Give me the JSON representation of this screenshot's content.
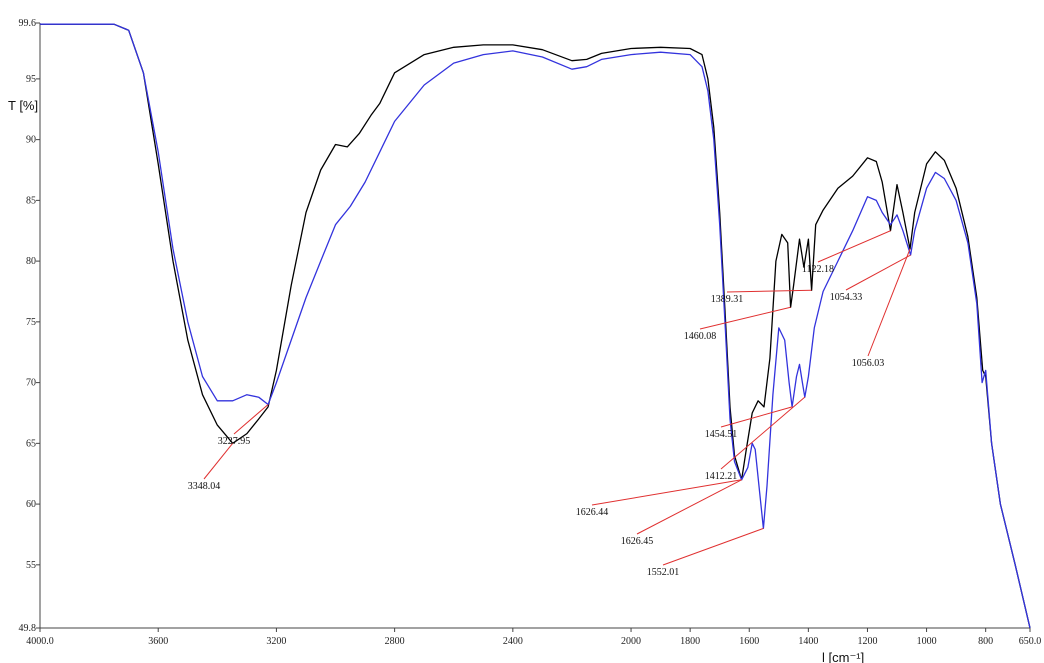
{
  "chart_data": {
    "type": "line",
    "ylabel": "T [%]",
    "xlabel": "l [cm⁻¹]",
    "xlim": [
      4000,
      650
    ],
    "ylim": [
      49.8,
      99.6
    ],
    "x_reversed": true,
    "grid": false,
    "x_ticks": [
      "4000.0",
      "3600",
      "3200",
      "2800",
      "2400",
      "2000",
      "1800",
      "1600",
      "1400",
      "1200",
      "1000",
      "800",
      "650.0"
    ],
    "y_ticks": [
      "99.6",
      "95",
      "90",
      "85",
      "80",
      "75",
      "70",
      "65",
      "60",
      "55",
      "49.8"
    ],
    "series": [
      {
        "color": "#000000",
        "points": [
          [
            4000,
            99.5
          ],
          [
            3750,
            99.5
          ],
          [
            3700,
            99.0
          ],
          [
            3650,
            95.5
          ],
          [
            3600,
            88.0
          ],
          [
            3550,
            80.0
          ],
          [
            3500,
            73.5
          ],
          [
            3450,
            69.0
          ],
          [
            3400,
            66.5
          ],
          [
            3348,
            65.0
          ],
          [
            3300,
            65.8
          ],
          [
            3260,
            67.0
          ],
          [
            3228,
            68.0
          ],
          [
            3200,
            71.0
          ],
          [
            3150,
            78.0
          ],
          [
            3100,
            84.0
          ],
          [
            3050,
            87.5
          ],
          [
            3000,
            89.6
          ],
          [
            2960,
            89.4
          ],
          [
            2920,
            90.5
          ],
          [
            2880,
            92.0
          ],
          [
            2850,
            93.0
          ],
          [
            2800,
            95.5
          ],
          [
            2700,
            97.0
          ],
          [
            2600,
            97.6
          ],
          [
            2500,
            97.8
          ],
          [
            2400,
            97.8
          ],
          [
            2300,
            97.4
          ],
          [
            2200,
            96.5
          ],
          [
            2150,
            96.6
          ],
          [
            2100,
            97.1
          ],
          [
            2000,
            97.5
          ],
          [
            1900,
            97.6
          ],
          [
            1800,
            97.5
          ],
          [
            1760,
            97.0
          ],
          [
            1740,
            95.0
          ],
          [
            1720,
            91.0
          ],
          [
            1700,
            84.0
          ],
          [
            1680,
            75.0
          ],
          [
            1665,
            68.0
          ],
          [
            1650,
            64.0
          ],
          [
            1626,
            62.0
          ],
          [
            1610,
            64.5
          ],
          [
            1590,
            67.5
          ],
          [
            1570,
            68.5
          ],
          [
            1550,
            68.0
          ],
          [
            1530,
            72.0
          ],
          [
            1510,
            80.0
          ],
          [
            1490,
            82.2
          ],
          [
            1470,
            81.5
          ],
          [
            1460,
            76.2
          ],
          [
            1450,
            78.0
          ],
          [
            1430,
            81.8
          ],
          [
            1415,
            79.5
          ],
          [
            1400,
            81.8
          ],
          [
            1389,
            77.6
          ],
          [
            1375,
            83.0
          ],
          [
            1350,
            84.2
          ],
          [
            1300,
            86.0
          ],
          [
            1250,
            87.0
          ],
          [
            1200,
            88.5
          ],
          [
            1170,
            88.2
          ],
          [
            1150,
            86.5
          ],
          [
            1122,
            82.5
          ],
          [
            1100,
            86.3
          ],
          [
            1080,
            84.0
          ],
          [
            1056,
            81.0
          ],
          [
            1040,
            84.0
          ],
          [
            1000,
            88.0
          ],
          [
            970,
            89.0
          ],
          [
            940,
            88.3
          ],
          [
            900,
            86.0
          ],
          [
            860,
            82.0
          ],
          [
            830,
            77.0
          ],
          [
            810,
            71.0
          ],
          [
            800,
            70.5
          ],
          [
            780,
            65.0
          ],
          [
            750,
            60.0
          ],
          [
            700,
            55.0
          ],
          [
            650,
            49.8
          ]
        ]
      },
      {
        "color": "#3333dd",
        "points": [
          [
            4000,
            99.5
          ],
          [
            3750,
            99.5
          ],
          [
            3700,
            99.0
          ],
          [
            3650,
            95.5
          ],
          [
            3600,
            89.0
          ],
          [
            3550,
            81.0
          ],
          [
            3500,
            75.0
          ],
          [
            3450,
            70.5
          ],
          [
            3400,
            68.5
          ],
          [
            3348,
            68.5
          ],
          [
            3300,
            69.0
          ],
          [
            3260,
            68.8
          ],
          [
            3228,
            68.2
          ],
          [
            3200,
            70.0
          ],
          [
            3150,
            73.5
          ],
          [
            3100,
            77.0
          ],
          [
            3050,
            80.0
          ],
          [
            3000,
            83.0
          ],
          [
            2950,
            84.5
          ],
          [
            2900,
            86.5
          ],
          [
            2800,
            91.5
          ],
          [
            2700,
            94.5
          ],
          [
            2600,
            96.3
          ],
          [
            2500,
            97.0
          ],
          [
            2400,
            97.3
          ],
          [
            2300,
            96.8
          ],
          [
            2200,
            95.8
          ],
          [
            2150,
            96.0
          ],
          [
            2100,
            96.6
          ],
          [
            2000,
            97.0
          ],
          [
            1900,
            97.2
          ],
          [
            1800,
            97.0
          ],
          [
            1760,
            96.0
          ],
          [
            1740,
            94.0
          ],
          [
            1720,
            90.0
          ],
          [
            1700,
            83.0
          ],
          [
            1680,
            74.0
          ],
          [
            1665,
            67.0
          ],
          [
            1650,
            63.5
          ],
          [
            1626,
            62.0
          ],
          [
            1605,
            63.0
          ],
          [
            1590,
            65.0
          ],
          [
            1580,
            64.5
          ],
          [
            1565,
            61.0
          ],
          [
            1552,
            58.0
          ],
          [
            1540,
            61.5
          ],
          [
            1520,
            69.0
          ],
          [
            1500,
            74.5
          ],
          [
            1480,
            73.5
          ],
          [
            1465,
            70.0
          ],
          [
            1455,
            68.0
          ],
          [
            1440,
            70.5
          ],
          [
            1430,
            71.5
          ],
          [
            1420,
            70.0
          ],
          [
            1412,
            68.8
          ],
          [
            1400,
            70.5
          ],
          [
            1380,
            74.5
          ],
          [
            1350,
            77.5
          ],
          [
            1300,
            80.0
          ],
          [
            1250,
            82.5
          ],
          [
            1200,
            85.3
          ],
          [
            1170,
            85.0
          ],
          [
            1150,
            84.0
          ],
          [
            1122,
            83.0
          ],
          [
            1100,
            83.8
          ],
          [
            1080,
            82.5
          ],
          [
            1054,
            80.5
          ],
          [
            1040,
            82.5
          ],
          [
            1000,
            86.0
          ],
          [
            970,
            87.3
          ],
          [
            940,
            86.8
          ],
          [
            900,
            85.0
          ],
          [
            860,
            81.5
          ],
          [
            830,
            76.5
          ],
          [
            812,
            70.0
          ],
          [
            800,
            71.0
          ],
          [
            780,
            65.0
          ],
          [
            750,
            60.0
          ],
          [
            700,
            55.0
          ],
          [
            650,
            49.8
          ]
        ]
      }
    ],
    "annotations": [
      {
        "text": "3348.04",
        "x": 3348,
        "y": 65.0
      },
      {
        "text": "3227.95",
        "x": 3228,
        "y": 68.2
      },
      {
        "text": "1626.44",
        "x": 1626,
        "y": 62.0
      },
      {
        "text": "1626.45",
        "x": 1626,
        "y": 62.0
      },
      {
        "text": "1552.01",
        "x": 1552,
        "y": 58.0
      },
      {
        "text": "1454.51",
        "x": 1455,
        "y": 68.0
      },
      {
        "text": "1460.08",
        "x": 1460,
        "y": 76.2
      },
      {
        "text": "1412.21",
        "x": 1412,
        "y": 68.8
      },
      {
        "text": "1389.31",
        "x": 1389,
        "y": 77.6
      },
      {
        "text": "1122.18",
        "x": 1122,
        "y": 82.5
      },
      {
        "text": "1054.33",
        "x": 1054,
        "y": 80.5
      },
      {
        "text": "1056.03",
        "x": 1056,
        "y": 81.0
      }
    ]
  }
}
